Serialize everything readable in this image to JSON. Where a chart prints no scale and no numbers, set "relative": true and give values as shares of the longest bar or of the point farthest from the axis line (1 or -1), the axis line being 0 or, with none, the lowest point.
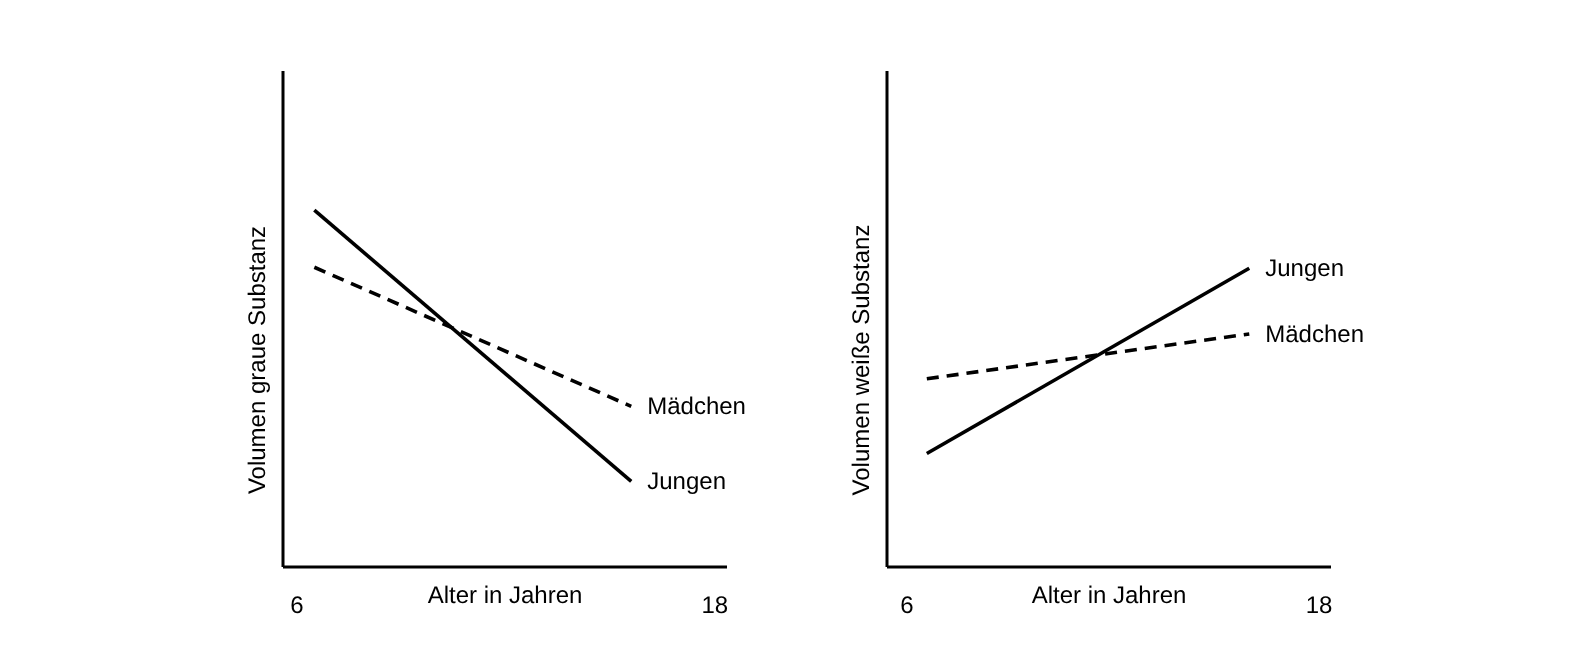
{
  "chart_data": [
    {
      "type": "line",
      "xlabel": "Alter in Jahren",
      "ylabel": "Volumen graue Substanz",
      "relative": true,
      "x": [
        6.5,
        15.6
      ],
      "xlim": [
        5.6,
        18.35
      ],
      "xticks": [
        6,
        18
      ],
      "series": [
        {
          "name": "Jungen",
          "color": "#000000",
          "line_style": "solid",
          "values": [
            1,
            0.24
          ]
        },
        {
          "name": "Mädchen",
          "color": "#000000",
          "line_style": "dashed",
          "values": [
            0.84,
            0.45
          ]
        }
      ]
    },
    {
      "type": "line",
      "xlabel": "Alter in Jahren",
      "ylabel": "Volumen weiße Substanz",
      "relative": true,
      "x": [
        6.58,
        15.97
      ],
      "xlim": [
        5.42,
        18.35
      ],
      "xticks": [
        6,
        18
      ],
      "series": [
        {
          "name": "Jungen",
          "color": "#000000",
          "line_style": "solid",
          "values": [
            0.38,
            1
          ]
        },
        {
          "name": "Mädchen",
          "color": "#000000",
          "line_style": "dashed",
          "values": [
            0.63,
            0.78
          ]
        }
      ]
    }
  ]
}
